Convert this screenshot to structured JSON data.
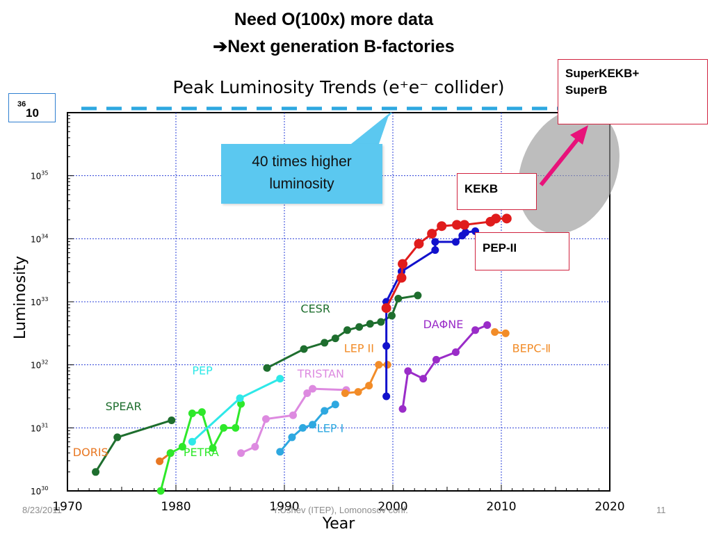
{
  "slide": {
    "title_line1": "Need O(100x) more data",
    "title_line2": "➔Next generation B-factories",
    "footer_date": "8/23/2011",
    "footer_author": "Y.Ushev (ITEP), Lomonosov conf.",
    "footer_page": "11"
  },
  "annotations": {
    "box_10_36_base": "10",
    "box_10_36_exp": "36",
    "superkekb_line1": "SuperKEKB+",
    "superkekb_line2": "SuperB",
    "kekb": "KEKB",
    "pepii": "PEP-II",
    "callout_line1": "40 times higher",
    "callout_line2": "luminosity"
  },
  "colors": {
    "grid": "#2a3fd8",
    "dashed_target": "#2ea8e0",
    "highlight_arrow": "#e8127a",
    "box_border": "#d0223e"
  },
  "chart_data": {
    "type": "line",
    "title": "Peak  Luminosity Trends (e⁺e⁻ collider)",
    "xlabel": "Year",
    "ylabel": "Luminosity",
    "xlim": [
      1970,
      2020
    ],
    "ylim_log10": [
      30,
      36
    ],
    "y_scale": "log",
    "x_ticks": [
      1970,
      1980,
      1990,
      2000,
      2010,
      2020
    ],
    "x_tick_labels": [
      "1970",
      "1980",
      "1990",
      "2000",
      "2010",
      "2020"
    ],
    "y_ticks_log10": [
      30,
      31,
      32,
      33,
      34,
      35
    ],
    "y_tick_labels_base": [
      "10",
      "10",
      "10",
      "10",
      "10",
      "10"
    ],
    "y_tick_labels_exp": [
      "30",
      "31",
      "32",
      "33",
      "34",
      "35"
    ],
    "grid": true,
    "target_line_log10": 36,
    "series": [
      {
        "name": "SPEAR",
        "color": "#1e6e2e",
        "x": [
          1972.6,
          1974.6,
          1979.6
        ],
        "y_log10": [
          30.3,
          30.85,
          31.12
        ],
        "label_x": 1973.5,
        "label_y_log10": 31.28
      },
      {
        "name": "DORIS",
        "color": "#e87722",
        "x": [
          1978.5,
          1979.5
        ],
        "y_log10": [
          30.47,
          30.6
        ],
        "label_x": 1970.5,
        "label_y_log10": 30.55
      },
      {
        "name": "PETRA",
        "color": "#2ee82a",
        "x": [
          1978.6,
          1979.5,
          1980.6,
          1981.5,
          1982.4,
          1983.4,
          1984.4,
          1985.5,
          1986.0
        ],
        "y_log10": [
          30.0,
          30.6,
          30.7,
          31.23,
          31.25,
          30.68,
          31.0,
          31.0,
          31.38
        ],
        "label_x": 1980.7,
        "label_y_log10": 30.55
      },
      {
        "name": "CESR",
        "color": "#1e6e2e",
        "x": [
          1988.4,
          1991.8,
          1993.7,
          1994.7,
          1995.8,
          1996.9,
          1997.9,
          1998.9,
          1999.9,
          2000.5,
          2002.3
        ],
        "y_log10": [
          31.95,
          32.25,
          32.35,
          32.42,
          32.55,
          32.6,
          32.65,
          32.68,
          32.78,
          33.05,
          33.1
        ],
        "label_x": 1991.5,
        "label_y_log10": 32.83
      },
      {
        "name": "PEP",
        "color": "#2ee8e8",
        "x": [
          1981.5,
          1985.9,
          1989.6
        ],
        "y_log10": [
          30.78,
          31.47,
          31.78
        ],
        "label_x": 1981.5,
        "label_y_log10": 31.85
      },
      {
        "name": "TRISTAN",
        "color": "#dd8ae0",
        "x": [
          1986.0,
          1987.3,
          1988.3,
          1990.8,
          1992.1,
          1992.6,
          1995.7
        ],
        "y_log10": [
          30.6,
          30.7,
          31.14,
          31.2,
          31.55,
          31.62,
          31.6
        ],
        "label_x": 1991.2,
        "label_y_log10": 31.8
      },
      {
        "name": "LEP I",
        "color": "#2ea8e0",
        "x": [
          1989.6,
          1990.7,
          1991.7,
          1992.6,
          1993.7,
          1994.7
        ],
        "y_log10": [
          30.62,
          30.85,
          31.0,
          31.05,
          31.27,
          31.37
        ],
        "label_x": 1993.0,
        "label_y_log10": 30.93
      },
      {
        "name": "LEP II",
        "color": "#f28c28",
        "x": [
          1995.6,
          1996.8,
          1997.8,
          1998.7,
          1999.5
        ],
        "y_log10": [
          31.55,
          31.57,
          31.67,
          32.0,
          32.0
        ],
        "label_x": 1995.5,
        "label_y_log10": 32.2
      },
      {
        "name": "PEP-II",
        "color": "#1111cc",
        "x": [
          1999.4,
          1999.4,
          1999.4,
          2000.8,
          2003.9,
          2003.9,
          2005.8,
          2006.4,
          2006.7,
          2007.6
        ],
        "y_log10": [
          31.5,
          32.3,
          33.0,
          33.48,
          33.82,
          33.95,
          33.95,
          34.05,
          34.1,
          34.12
        ],
        "label_x": null,
        "label_y_log10": null
      },
      {
        "name": "KEKB",
        "color": "#e01c1c",
        "x": [
          1999.4,
          2000.8,
          2000.9,
          2002.4,
          2003.6,
          2004.5,
          2005.9,
          2006.6,
          2009.0,
          2009.5,
          2010.5
        ],
        "y_log10": [
          32.9,
          33.38,
          33.6,
          33.92,
          34.08,
          34.2,
          34.22,
          34.22,
          34.27,
          34.32,
          34.32
        ],
        "label_x": null,
        "label_y_log10": null
      },
      {
        "name": "DAΦNE",
        "color": "#9a2cc8",
        "x": [
          2000.9,
          2001.4,
          2002.8,
          2004.0,
          2005.8,
          2007.6,
          2008.7
        ],
        "y_log10": [
          31.3,
          31.9,
          31.78,
          32.08,
          32.2,
          32.55,
          32.63
        ],
        "label_x": 2002.8,
        "label_y_log10": 32.58
      },
      {
        "name": "BEPC-Ⅱ",
        "color": "#f28c28",
        "x": [
          2009.4,
          2010.4
        ],
        "y_log10": [
          32.52,
          32.5
        ],
        "label_x": 2011.0,
        "label_y_log10": 32.2
      }
    ]
  }
}
